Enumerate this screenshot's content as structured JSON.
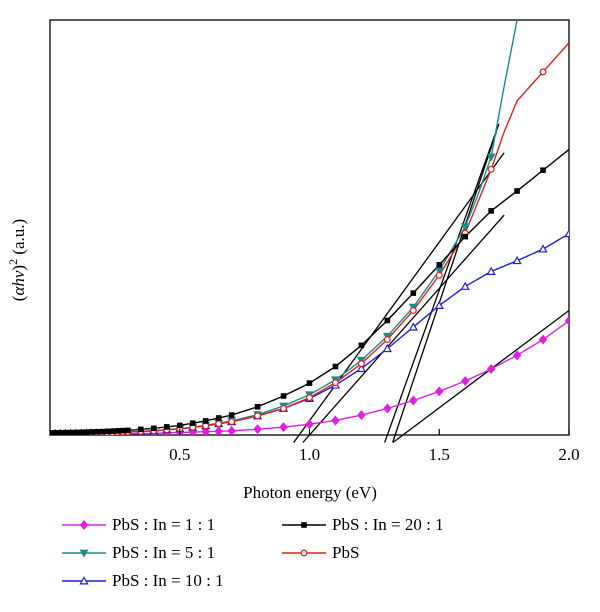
{
  "chart_data": {
    "type": "line",
    "title": "",
    "xlabel": "Photon energy (eV)",
    "ylabel": "(αhν)² (a.u.)",
    "ylabel_parts": {
      "paren_open": "(",
      "alpha": "α",
      "h": "h",
      "nu": "ν",
      "paren_close": ")",
      "sup": "2",
      "units": " (a.u.)"
    },
    "xlim": [
      0.0,
      2.0
    ],
    "ylim": [
      0,
      100
    ],
    "x_ticks": [
      0.5,
      1.0,
      1.5,
      2.0
    ],
    "x_tick_labels": [
      "0.5",
      "1.0",
      "1.5",
      "2.0"
    ],
    "y_ticks_labeled": false,
    "grid": false,
    "legend_position": "bottom",
    "series": [
      {
        "name": "PbS : In = 1 : 1",
        "color": "#e020e0",
        "marker": "diamond-filled",
        "x": [
          0.0,
          0.1,
          0.2,
          0.3,
          0.4,
          0.5,
          0.6,
          0.7,
          0.8,
          0.9,
          1.0,
          1.1,
          1.2,
          1.3,
          1.4,
          1.5,
          1.6,
          1.7,
          1.8,
          1.9,
          2.0
        ],
        "y": [
          0.2,
          0.2,
          0.2,
          0.3,
          0.4,
          0.6,
          0.8,
          1.0,
          1.4,
          1.9,
          2.6,
          3.5,
          4.8,
          6.4,
          8.3,
          10.5,
          13.0,
          15.9,
          19.2,
          23.0,
          27.5
        ],
        "markers": [
          0.0,
          0.02,
          0.04,
          0.06,
          0.08,
          0.1,
          0.12,
          0.14,
          0.16,
          0.18,
          0.2,
          0.22,
          0.24,
          0.26,
          0.28,
          0.3,
          0.35,
          0.4,
          0.45,
          0.5,
          0.55,
          0.6,
          0.65,
          0.7,
          0.8,
          0.9,
          1.0,
          1.1,
          1.2,
          1.3,
          1.4,
          1.5,
          1.6,
          1.7,
          1.8,
          1.9,
          2.0
        ]
      },
      {
        "name": "PbS : In = 5 : 1",
        "color": "#1a8c8c",
        "marker": "triangle-down-filled",
        "x": [
          0.0,
          0.1,
          0.2,
          0.3,
          0.4,
          0.5,
          0.6,
          0.7,
          0.8,
          0.9,
          1.0,
          1.1,
          1.2,
          1.3,
          1.4,
          1.5,
          1.6,
          1.65,
          1.7,
          1.75,
          1.8
        ],
        "y": [
          0.3,
          0.4,
          0.5,
          0.7,
          1.0,
          1.5,
          2.3,
          3.4,
          4.9,
          7.0,
          9.7,
          13.3,
          18.0,
          23.8,
          30.8,
          39.6,
          50.2,
          58.0,
          67.0,
          84.0,
          100.0
        ],
        "markers": [
          0.0,
          0.02,
          0.04,
          0.06,
          0.08,
          0.1,
          0.12,
          0.14,
          0.16,
          0.18,
          0.2,
          0.22,
          0.24,
          0.26,
          0.28,
          0.3,
          0.35,
          0.4,
          0.45,
          0.5,
          0.55,
          0.6,
          0.65,
          0.7,
          0.8,
          0.9,
          1.0,
          1.1,
          1.2,
          1.3,
          1.4,
          1.5,
          1.6,
          1.7
        ]
      },
      {
        "name": "PbS : In = 10 : 1",
        "color": "#1f1fd6",
        "marker": "triangle-up-open",
        "x": [
          0.0,
          0.1,
          0.2,
          0.3,
          0.4,
          0.5,
          0.6,
          0.7,
          0.8,
          0.9,
          1.0,
          1.1,
          1.2,
          1.3,
          1.4,
          1.5,
          1.6,
          1.7,
          1.8,
          1.9,
          2.0
        ],
        "y": [
          0.3,
          0.4,
          0.5,
          0.7,
          1.0,
          1.5,
          2.2,
          3.2,
          4.6,
          6.4,
          8.8,
          12.0,
          16.0,
          20.8,
          26.0,
          31.2,
          35.8,
          39.4,
          42.0,
          44.8,
          48.5
        ],
        "markers": [
          0.0,
          0.02,
          0.04,
          0.06,
          0.08,
          0.1,
          0.12,
          0.14,
          0.16,
          0.18,
          0.2,
          0.22,
          0.24,
          0.26,
          0.28,
          0.3,
          0.35,
          0.4,
          0.45,
          0.5,
          0.55,
          0.6,
          0.65,
          0.7,
          0.8,
          0.9,
          1.0,
          1.1,
          1.2,
          1.3,
          1.4,
          1.5,
          1.6,
          1.7,
          1.8,
          1.9,
          2.0
        ]
      },
      {
        "name": "PbS : In = 20 : 1",
        "color": "#000000",
        "marker": "square-filled",
        "x": [
          0.0,
          0.1,
          0.2,
          0.3,
          0.4,
          0.5,
          0.6,
          0.7,
          0.8,
          0.9,
          1.0,
          1.1,
          1.2,
          1.3,
          1.4,
          1.5,
          1.6,
          1.7,
          1.8,
          1.9,
          2.0
        ],
        "y": [
          0.5,
          0.6,
          0.8,
          1.1,
          1.6,
          2.3,
          3.4,
          4.8,
          6.8,
          9.4,
          12.5,
          16.5,
          21.6,
          27.6,
          34.2,
          41.0,
          47.8,
          54.0,
          58.8,
          63.8,
          68.8
        ],
        "markers": [
          0.0,
          0.02,
          0.04,
          0.06,
          0.08,
          0.1,
          0.12,
          0.14,
          0.16,
          0.18,
          0.2,
          0.22,
          0.24,
          0.26,
          0.28,
          0.3,
          0.35,
          0.4,
          0.45,
          0.5,
          0.55,
          0.6,
          0.65,
          0.7,
          0.8,
          0.9,
          1.0,
          1.1,
          1.2,
          1.3,
          1.4,
          1.5,
          1.6,
          1.7,
          1.8,
          1.9
        ]
      },
      {
        "name": "PbS",
        "color": "#e02020",
        "marker": "circle-open",
        "x": [
          0.0,
          0.1,
          0.2,
          0.3,
          0.4,
          0.5,
          0.6,
          0.7,
          0.8,
          0.9,
          1.0,
          1.1,
          1.2,
          1.3,
          1.4,
          1.5,
          1.6,
          1.7,
          1.75,
          1.8,
          1.9,
          2.0
        ],
        "y": [
          0.3,
          0.4,
          0.5,
          0.7,
          1.0,
          1.5,
          2.2,
          3.2,
          4.6,
          6.4,
          9.0,
          12.6,
          17.2,
          23.0,
          30.0,
          38.5,
          48.6,
          64.0,
          73.0,
          80.5,
          87.5,
          94.5
        ],
        "markers": [
          0.0,
          0.02,
          0.04,
          0.06,
          0.08,
          0.1,
          0.12,
          0.14,
          0.16,
          0.18,
          0.2,
          0.22,
          0.24,
          0.26,
          0.28,
          0.3,
          0.35,
          0.4,
          0.45,
          0.5,
          0.55,
          0.6,
          0.65,
          0.7,
          0.8,
          0.9,
          1.0,
          1.1,
          1.2,
          1.3,
          1.4,
          1.5,
          1.6,
          1.7,
          1.9
        ]
      }
    ],
    "fit_lines": [
      {
        "x": [
          0.96,
          1.75
        ],
        "y": [
          0,
          68
        ]
      },
      {
        "x": [
          1.0,
          1.75
        ],
        "y": [
          0,
          53
        ]
      },
      {
        "x": [
          1.3,
          1.73
        ],
        "y": [
          0,
          75
        ]
      },
      {
        "x": [
          1.33,
          1.72
        ],
        "y": [
          0,
          73
        ]
      },
      {
        "x": [
          1.36,
          2.0
        ],
        "y": [
          0,
          30
        ]
      }
    ]
  }
}
